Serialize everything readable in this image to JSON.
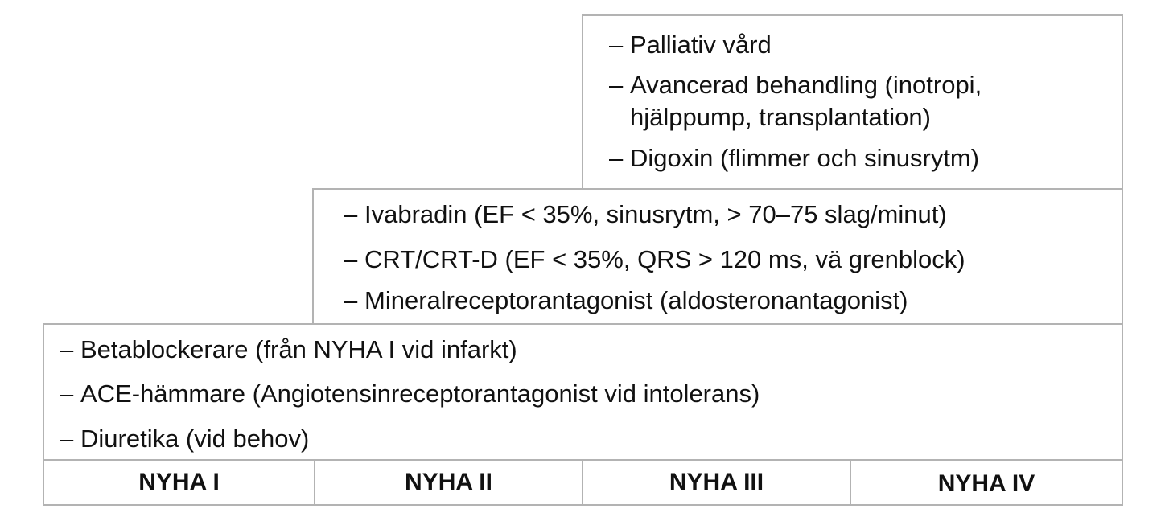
{
  "tiers": {
    "top": {
      "items": [
        {
          "dash": "–",
          "text": "Palliativ vård"
        },
        {
          "dash": "–",
          "text": "Avancerad behandling (inotropi, hjälppump, transplantation)"
        },
        {
          "dash": "–",
          "text": "Digoxin (flimmer och sinusrytm)"
        }
      ]
    },
    "middle": {
      "items": [
        {
          "dash": "–",
          "text": "Ivabradin (EF < 35%, sinusrytm, > 70–75 slag/minut)"
        },
        {
          "dash": "–",
          "text": "CRT/CRT-D (EF < 35%, QRS > 120 ms, vä grenblock)"
        },
        {
          "dash": "–",
          "text": "Mineralreceptorantagonist (aldosteronantagonist)"
        }
      ]
    },
    "bottom": {
      "items": [
        {
          "dash": "–",
          "text": "Betablockerare (från NYHA I vid infarkt)"
        },
        {
          "dash": "–",
          "text": "ACE-hämmare (Angiotensinreceptorantagonist vid intolerans)"
        },
        {
          "dash": "–",
          "text": "Diuretika (vid behov)"
        }
      ]
    }
  },
  "classes": [
    "NYHA I",
    "NYHA II",
    "NYHA III",
    "NYHA IV"
  ],
  "colors": {
    "border": "#b3b3b3",
    "text": "#111111",
    "background": "#ffffff"
  }
}
